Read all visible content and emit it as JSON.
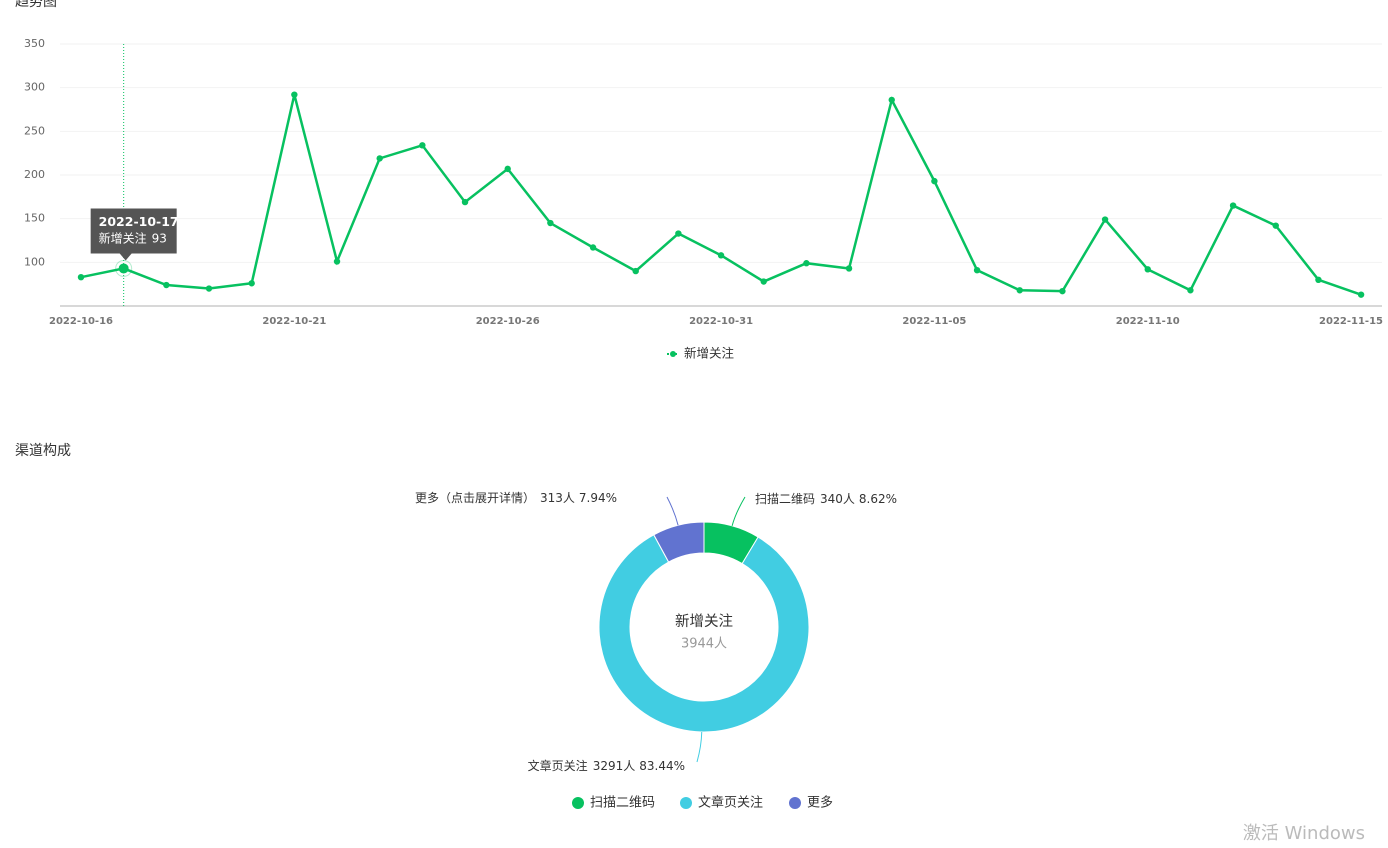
{
  "chart_data": [
    {
      "type": "line",
      "title": "趋势图",
      "categories": [
        "2022-10-16",
        null,
        null,
        null,
        null,
        "2022-10-21",
        null,
        null,
        null,
        null,
        "2022-10-26",
        null,
        null,
        null,
        null,
        "2022-10-31",
        null,
        null,
        null,
        null,
        "2022-11-05",
        null,
        null,
        null,
        null,
        "2022-11-10",
        null,
        null,
        null,
        null,
        "2022-11-15"
      ],
      "series": [
        {
          "name": "新增关注",
          "color": "#07c160",
          "values": [
            83,
            93,
            74,
            70,
            76,
            292,
            101,
            219,
            234,
            169,
            207,
            145,
            117,
            90,
            133,
            108,
            78,
            99,
            93,
            286,
            193,
            91,
            68,
            67,
            149,
            92,
            68,
            165,
            142,
            80,
            63
          ]
        }
      ],
      "ylim": [
        50,
        350
      ],
      "yticks": [
        100,
        150,
        200,
        250,
        300,
        350
      ],
      "grid": true,
      "legend": "bottom",
      "tooltip": {
        "category": "2022-10-17"
      }
    },
    {
      "type": "pie",
      "title": "渠道构成",
      "center_title": "新增关注",
      "total": 3944,
      "total_label": "3944人",
      "categories": [
        "扫描二维码",
        "文章页关注",
        "更多"
      ],
      "label_names": [
        "扫描二维码",
        "文章页关注",
        "更多（点击展开详情）"
      ],
      "values": [
        340,
        3291,
        313
      ],
      "value_labels": [
        "340人",
        "3291人",
        "313人"
      ],
      "percent_labels": [
        "8.62%",
        "83.44%",
        "7.94%"
      ],
      "colors": [
        "#07c160",
        "#41cde2",
        "#6173d0"
      ],
      "legend": "bottom"
    }
  ],
  "watermark": "激活 Windows"
}
